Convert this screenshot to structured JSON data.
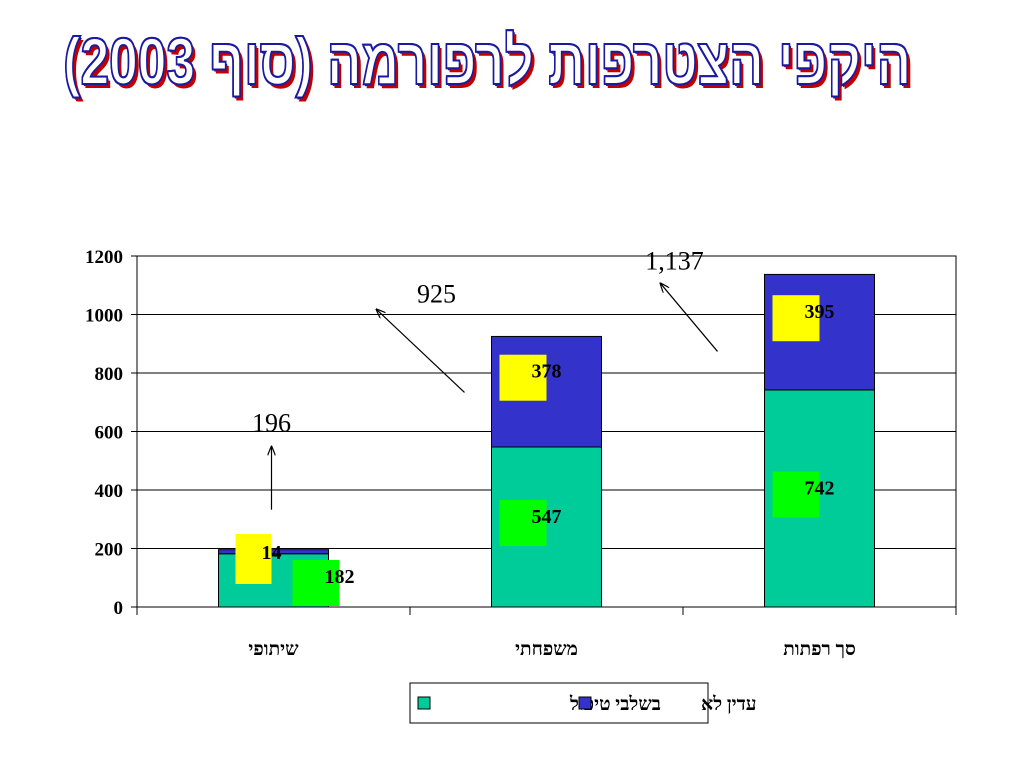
{
  "title": "היקפי הצטרפות לרפורמה (סוף 2003)",
  "colors": {
    "in_treatment": "#00cc99",
    "not_yet": "#3333cc",
    "label_yellow": "#ffff00",
    "label_green": "#00ff00",
    "axis": "#000000",
    "grid": "#000000"
  },
  "chart_data": {
    "type": "bar",
    "stacked": true,
    "categories": [
      "שיתופי",
      "משפחתי",
      "סך רפתות"
    ],
    "series": [
      {
        "name": "בשלבי טיפול",
        "values": [
          182,
          547,
          742
        ]
      },
      {
        "name": "עדין לא",
        "values": [
          14,
          378,
          395
        ]
      }
    ],
    "totals": [
      196,
      925,
      1137
    ],
    "total_labels": [
      "196",
      "925",
      "1,137"
    ],
    "yticks": [
      0,
      200,
      400,
      600,
      800,
      1000,
      1200
    ],
    "ylim": [
      0,
      1200
    ],
    "grid": true,
    "legend_position": "bottom",
    "title": "",
    "xlabel": "",
    "ylabel": ""
  }
}
